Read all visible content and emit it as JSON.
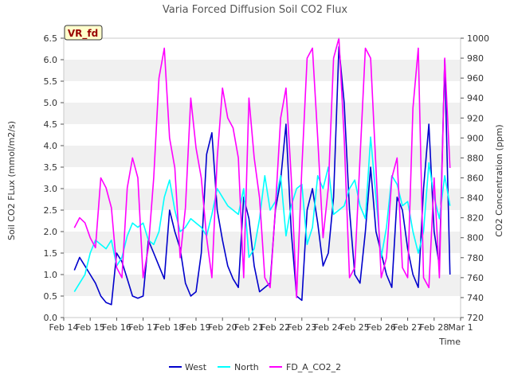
{
  "chart_data": {
    "type": "line",
    "title": "Varia Forced Diffusion Soil CO2 Flux",
    "badge": "VR_fd",
    "xlabel": "Time",
    "ylabel_left": "Soil CO2 FLux (mmol/m2/s)",
    "ylabel_right": "CO2 Concentration (ppm)",
    "x_ticks": [
      "Feb 14",
      "Feb 15",
      "Feb 16",
      "Feb 17",
      "Feb 18",
      "Feb 19",
      "Feb 20",
      "Feb 21",
      "Feb 22",
      "Feb 23",
      "Feb 24",
      "Feb 25",
      "Feb 26",
      "Feb 27",
      "Feb 28",
      "Mar 1"
    ],
    "ylim_left": [
      0,
      6.5
    ],
    "left_ticks": [
      "0.0",
      "0.5",
      "1.0",
      "1.5",
      "2.0",
      "2.5",
      "3.0",
      "3.5",
      "4.0",
      "4.5",
      "5.0",
      "5.5",
      "6.0",
      "6.5"
    ],
    "ylim_right": [
      720,
      1000
    ],
    "right_ticks": [
      "720",
      "740",
      "760",
      "780",
      "800",
      "820",
      "840",
      "860",
      "880",
      "900",
      "920",
      "940",
      "960",
      "980",
      "1000"
    ],
    "grid": "horizontal-bands",
    "legend_position": "bottom-center",
    "series": [
      {
        "name": "West",
        "axis": "left",
        "color": "#0000cc",
        "x_days": [
          0.4,
          0.6,
          0.8,
          1.0,
          1.2,
          1.4,
          1.6,
          1.8,
          2.0,
          2.2,
          2.4,
          2.6,
          2.8,
          3.0,
          3.2,
          3.4,
          3.6,
          3.8,
          4.0,
          4.2,
          4.4,
          4.6,
          4.8,
          5.0,
          5.2,
          5.4,
          5.6,
          5.8,
          6.0,
          6.2,
          6.4,
          6.6,
          6.8,
          7.0,
          7.2,
          7.4,
          7.6,
          7.8,
          8.0,
          8.2,
          8.4,
          8.6,
          8.8,
          9.0,
          9.2,
          9.4,
          9.6,
          9.8,
          10.0,
          10.2,
          10.4,
          10.6,
          10.8,
          11.0,
          11.2,
          11.4,
          11.6,
          11.8,
          12.0,
          12.2,
          12.4,
          12.6,
          12.8,
          13.0,
          13.2,
          13.4,
          13.6,
          13.8,
          14.0,
          14.2,
          14.4,
          14.6
        ],
        "values": [
          1.1,
          1.4,
          1.2,
          1.0,
          0.8,
          0.5,
          0.35,
          0.3,
          1.5,
          1.3,
          0.9,
          0.5,
          0.45,
          0.5,
          1.8,
          1.5,
          1.2,
          0.9,
          2.5,
          2.0,
          1.6,
          0.8,
          0.5,
          0.6,
          1.5,
          3.8,
          4.3,
          2.5,
          1.8,
          1.2,
          0.9,
          0.7,
          2.8,
          2.3,
          1.2,
          0.6,
          0.7,
          0.8,
          2.5,
          3.2,
          4.5,
          2.0,
          0.5,
          0.4,
          2.5,
          3.0,
          2.2,
          1.2,
          1.5,
          2.8,
          6.3,
          5.0,
          2.5,
          1.0,
          0.8,
          2.0,
          3.5,
          2.0,
          1.5,
          1.0,
          0.7,
          2.8,
          2.5,
          1.6,
          1.0,
          0.7,
          3.0,
          4.5,
          2.0,
          1.2,
          6.0,
          1.0
        ]
      },
      {
        "name": "North",
        "axis": "left",
        "color": "#00ffff",
        "x_days": [
          0.4,
          0.6,
          0.8,
          1.0,
          1.2,
          1.4,
          1.6,
          1.8,
          2.0,
          2.2,
          2.4,
          2.6,
          2.8,
          3.0,
          3.2,
          3.4,
          3.6,
          3.8,
          4.0,
          4.2,
          4.4,
          4.6,
          4.8,
          5.0,
          5.2,
          5.4,
          5.6,
          5.8,
          6.0,
          6.2,
          6.4,
          6.6,
          6.8,
          7.0,
          7.2,
          7.4,
          7.6,
          7.8,
          8.0,
          8.2,
          8.4,
          8.6,
          8.8,
          9.0,
          9.2,
          9.4,
          9.6,
          9.8,
          10.0,
          10.2,
          10.4,
          10.6,
          10.8,
          11.0,
          11.2,
          11.4,
          11.6,
          11.8,
          12.0,
          12.2,
          12.4,
          12.6,
          12.8,
          13.0,
          13.2,
          13.4,
          13.6,
          13.8,
          14.0,
          14.2,
          14.4,
          14.6
        ],
        "values": [
          0.6,
          0.8,
          1.0,
          1.5,
          1.8,
          1.7,
          1.6,
          1.8,
          1.2,
          1.4,
          1.9,
          2.2,
          2.1,
          2.2,
          1.8,
          1.7,
          2.0,
          2.8,
          3.2,
          2.5,
          2.0,
          2.1,
          2.3,
          2.2,
          2.1,
          1.9,
          2.4,
          3.0,
          2.8,
          2.6,
          2.5,
          2.4,
          3.0,
          1.4,
          1.6,
          2.3,
          3.3,
          2.5,
          2.7,
          3.3,
          1.9,
          2.6,
          3.0,
          3.1,
          1.7,
          2.1,
          3.3,
          3.0,
          3.5,
          2.4,
          2.5,
          2.6,
          3.0,
          3.2,
          2.6,
          2.3,
          4.2,
          2.8,
          1.4,
          2.1,
          3.3,
          3.1,
          2.6,
          2.7,
          2.0,
          1.5,
          2.0,
          3.6,
          2.8,
          2.3,
          3.3,
          2.6
        ]
      },
      {
        "name": "FD_A_CO2_2",
        "axis": "right",
        "color": "#ff00ff",
        "x_days": [
          0.4,
          0.6,
          0.8,
          1.0,
          1.2,
          1.4,
          1.6,
          1.8,
          2.0,
          2.2,
          2.4,
          2.6,
          2.8,
          3.0,
          3.2,
          3.4,
          3.6,
          3.8,
          4.0,
          4.2,
          4.4,
          4.6,
          4.8,
          5.0,
          5.2,
          5.4,
          5.6,
          5.8,
          6.0,
          6.2,
          6.4,
          6.6,
          6.8,
          7.0,
          7.2,
          7.4,
          7.6,
          7.8,
          8.0,
          8.2,
          8.4,
          8.6,
          8.8,
          9.0,
          9.2,
          9.4,
          9.6,
          9.8,
          10.0,
          10.2,
          10.4,
          10.6,
          10.8,
          11.0,
          11.2,
          11.4,
          11.6,
          11.8,
          12.0,
          12.2,
          12.4,
          12.6,
          12.8,
          13.0,
          13.2,
          13.4,
          13.6,
          13.8,
          14.0,
          14.2,
          14.4,
          14.6
        ],
        "values": [
          810,
          820,
          815,
          800,
          790,
          860,
          850,
          830,
          770,
          760,
          850,
          880,
          860,
          760,
          790,
          860,
          960,
          990,
          900,
          870,
          780,
          830,
          940,
          890,
          860,
          800,
          760,
          880,
          950,
          920,
          910,
          880,
          760,
          940,
          880,
          840,
          760,
          750,
          830,
          920,
          950,
          860,
          740,
          870,
          980,
          990,
          900,
          800,
          850,
          980,
          1000,
          900,
          760,
          770,
          880,
          990,
          980,
          870,
          760,
          780,
          860,
          880,
          770,
          760,
          930,
          990,
          760,
          750,
          860,
          760,
          980,
          870
        ]
      }
    ]
  }
}
